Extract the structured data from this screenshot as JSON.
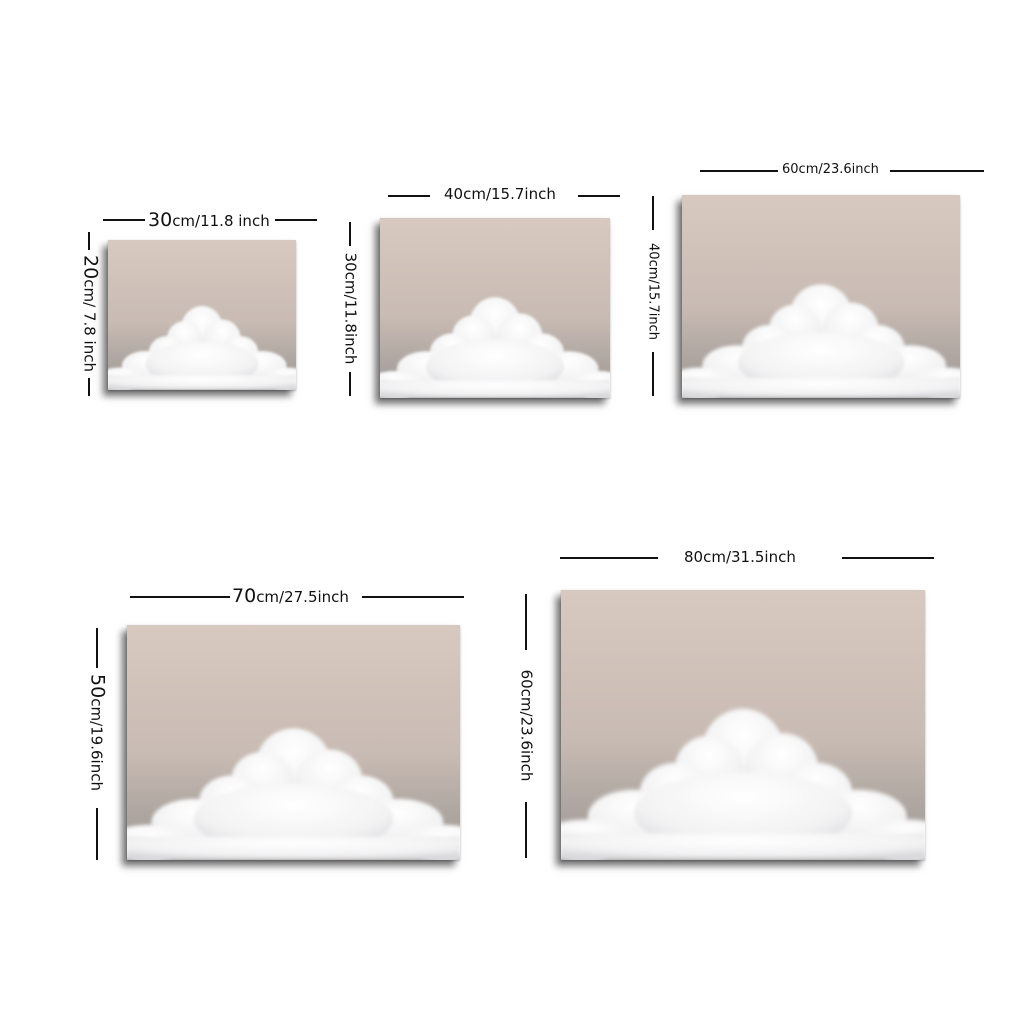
{
  "sizes": [
    {
      "width": {
        "num": "30",
        "rest": "cm/11.8 inch"
      },
      "height": {
        "num": "20",
        "rest": "cm/ 7.8 inch"
      }
    },
    {
      "width": {
        "num": "",
        "rest": "40cm/15.7inch"
      },
      "height": {
        "num": "",
        "rest": "30cm/11.8inch"
      }
    },
    {
      "width": {
        "num": "",
        "rest": "60cm/23.6inch"
      },
      "height": {
        "num": "",
        "rest": "40cm/15.7inch"
      }
    },
    {
      "width": {
        "num": "70",
        "rest": "cm/27.5inch"
      },
      "height": {
        "num": "50",
        "rest": "cm/19.6inch"
      }
    },
    {
      "width": {
        "num": "",
        "rest": "80cm/31.5inch"
      },
      "height": {
        "num": "",
        "rest": "60cm/23.6inch"
      }
    }
  ],
  "colors": {
    "sky_top": "#d6c6bd",
    "sky_bottom": "#8f8b88",
    "cloud": "#ffffff"
  }
}
